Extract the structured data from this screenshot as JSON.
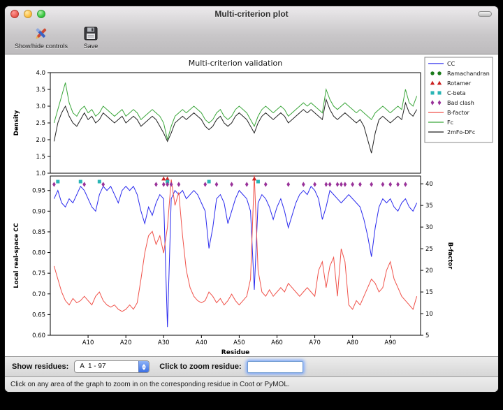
{
  "window": {
    "title": "Multi-criterion plot"
  },
  "toolbar": {
    "show_hide_label": "Show/hide controls",
    "save_label": "Save"
  },
  "controls": {
    "show_residues_label": "Show residues:",
    "residue_range_value": "A  1 - 97",
    "zoom_label": "Click to zoom residue:",
    "zoom_input_value": ""
  },
  "status_bar": "Click on any area of the graph to zoom in on the corresponding residue in Coot or PyMOL.",
  "chart_data": {
    "type": "line",
    "title": "Multi-criterion validation",
    "xlabel": "Residue",
    "residue_start": 1,
    "residue_end": 97,
    "xtick_positions": [
      10,
      20,
      30,
      40,
      50,
      60,
      70,
      80,
      90
    ],
    "xtick_labels": [
      "A10",
      "A20",
      "A30",
      "A40",
      "A50",
      "A60",
      "A70",
      "A80",
      "A90"
    ],
    "legend": [
      {
        "label": "CC",
        "symbol": "line",
        "color": "#2a2aee"
      },
      {
        "label": "Ramachandran",
        "symbol": "circle",
        "color": "#1a7a1a"
      },
      {
        "label": "Rotamer",
        "symbol": "triangle",
        "color": "#cc2222"
      },
      {
        "label": "C-beta",
        "symbol": "square",
        "color": "#2ab5b5"
      },
      {
        "label": "Bad clash",
        "symbol": "diamond",
        "color": "#993299"
      },
      {
        "label": "B-factor",
        "symbol": "line",
        "color": "#f0524a"
      },
      {
        "label": "Fc",
        "symbol": "line",
        "color": "#3aa63a"
      },
      {
        "label": "2mFo-DFc",
        "symbol": "line",
        "color": "#222222"
      }
    ],
    "top": {
      "ylabel": "Density",
      "ylim": [
        1.0,
        4.0
      ],
      "yticks": [
        1.0,
        1.5,
        2.0,
        2.5,
        3.0,
        3.5,
        4.0
      ],
      "series": [
        {
          "name": "Fc",
          "color": "#3aa63a",
          "values": [
            2.5,
            2.9,
            3.3,
            3.7,
            3.1,
            2.8,
            2.7,
            2.9,
            3.0,
            2.8,
            2.9,
            2.7,
            2.8,
            3.0,
            2.9,
            2.8,
            2.7,
            2.8,
            2.9,
            2.7,
            2.8,
            2.9,
            2.8,
            2.6,
            2.7,
            2.8,
            2.9,
            2.8,
            2.7,
            2.5,
            2.0,
            2.4,
            2.7,
            2.8,
            2.9,
            2.8,
            2.9,
            3.0,
            2.9,
            2.8,
            2.6,
            2.5,
            2.6,
            2.8,
            2.9,
            2.7,
            2.6,
            2.7,
            2.9,
            3.0,
            2.9,
            2.8,
            2.6,
            2.4,
            2.7,
            2.9,
            3.0,
            2.9,
            2.8,
            2.9,
            3.0,
            2.9,
            2.7,
            2.8,
            2.9,
            3.0,
            3.1,
            3.0,
            3.1,
            3.0,
            2.9,
            2.8,
            3.5,
            3.2,
            3.0,
            2.9,
            3.0,
            3.1,
            3.0,
            2.9,
            2.8,
            2.9,
            2.8,
            2.7,
            2.6,
            2.8,
            2.9,
            3.0,
            2.9,
            2.8,
            2.9,
            3.0,
            2.9,
            3.5,
            3.1,
            3.0,
            3.3
          ]
        },
        {
          "name": "2mFo-DFc",
          "color": "#222222",
          "values": [
            1.95,
            2.5,
            2.8,
            3.0,
            2.7,
            2.5,
            2.4,
            2.6,
            2.8,
            2.6,
            2.7,
            2.5,
            2.6,
            2.8,
            2.7,
            2.6,
            2.5,
            2.6,
            2.7,
            2.5,
            2.6,
            2.7,
            2.6,
            2.4,
            2.5,
            2.6,
            2.7,
            2.6,
            2.4,
            2.2,
            1.95,
            2.2,
            2.5,
            2.6,
            2.7,
            2.6,
            2.7,
            2.8,
            2.7,
            2.6,
            2.4,
            2.3,
            2.4,
            2.6,
            2.7,
            2.5,
            2.4,
            2.5,
            2.7,
            2.8,
            2.7,
            2.6,
            2.4,
            2.2,
            2.5,
            2.7,
            2.8,
            2.7,
            2.6,
            2.7,
            2.8,
            2.7,
            2.5,
            2.6,
            2.7,
            2.8,
            2.9,
            2.8,
            2.9,
            2.8,
            2.7,
            2.6,
            3.2,
            2.9,
            2.7,
            2.6,
            2.7,
            2.8,
            2.7,
            2.6,
            2.5,
            2.6,
            2.4,
            2.0,
            1.6,
            2.2,
            2.6,
            2.7,
            2.6,
            2.5,
            2.6,
            2.7,
            2.6,
            3.1,
            2.8,
            2.7,
            2.9
          ]
        }
      ]
    },
    "bottom": {
      "ylabel": "Local real-space CC",
      "ylim": [
        0.6,
        0.985
      ],
      "yticks": [
        0.6,
        0.65,
        0.7,
        0.75,
        0.8,
        0.85,
        0.9,
        0.95
      ],
      "y2label": "B-factor",
      "y2lim": [
        5,
        41.8
      ],
      "y2ticks": [
        5,
        10,
        15,
        20,
        25,
        30,
        35,
        40
      ],
      "series": [
        {
          "name": "CC",
          "axis": "left",
          "color": "#2a2aee",
          "values": [
            0.93,
            0.95,
            0.92,
            0.91,
            0.93,
            0.92,
            0.94,
            0.96,
            0.95,
            0.93,
            0.91,
            0.9,
            0.94,
            0.96,
            0.95,
            0.96,
            0.94,
            0.92,
            0.95,
            0.96,
            0.95,
            0.96,
            0.94,
            0.9,
            0.87,
            0.91,
            0.89,
            0.92,
            0.94,
            0.93,
            0.62,
            0.93,
            0.95,
            0.94,
            0.95,
            0.93,
            0.94,
            0.95,
            0.94,
            0.92,
            0.9,
            0.81,
            0.86,
            0.93,
            0.94,
            0.92,
            0.87,
            0.9,
            0.93,
            0.95,
            0.94,
            0.93,
            0.9,
            0.71,
            0.92,
            0.94,
            0.93,
            0.91,
            0.88,
            0.91,
            0.93,
            0.9,
            0.86,
            0.89,
            0.92,
            0.94,
            0.95,
            0.94,
            0.96,
            0.95,
            0.93,
            0.88,
            0.91,
            0.95,
            0.94,
            0.93,
            0.92,
            0.93,
            0.94,
            0.93,
            0.92,
            0.91,
            0.88,
            0.84,
            0.79,
            0.86,
            0.91,
            0.93,
            0.92,
            0.93,
            0.91,
            0.9,
            0.92,
            0.93,
            0.91,
            0.9,
            0.92
          ]
        },
        {
          "name": "B-factor",
          "axis": "right",
          "color": "#f0524a",
          "values": [
            21,
            18,
            15,
            13,
            12,
            13.5,
            12.5,
            13,
            14,
            13,
            12,
            14,
            15,
            13,
            12,
            11.5,
            12,
            11,
            10.5,
            11,
            12,
            11,
            12.5,
            18,
            24,
            28,
            29,
            26,
            28,
            24,
            30,
            41,
            35,
            38,
            28,
            20,
            16,
            14,
            13,
            12.5,
            13,
            15,
            14,
            12.5,
            13.5,
            12,
            13,
            14.5,
            13,
            12,
            13,
            14,
            18,
            42,
            20,
            15,
            14,
            15.5,
            14,
            15,
            16,
            15,
            17,
            16,
            15,
            14,
            15,
            16,
            15,
            14,
            20,
            22,
            16,
            21,
            23,
            14,
            25,
            22,
            12,
            11,
            13,
            12,
            14,
            16,
            18,
            17,
            15,
            16,
            20,
            22,
            18,
            16,
            14,
            13,
            12,
            11,
            14
          ]
        }
      ],
      "markers": {
        "ramachandran": {
          "color": "#1a7a1a",
          "shape": "circle",
          "residues": []
        },
        "rotamer": {
          "color": "#cc2222",
          "shape": "triangle",
          "residues": [
            30,
            31,
            54
          ]
        },
        "cbeta": {
          "color": "#2ab5b5",
          "shape": "square",
          "residues": [
            2,
            8,
            13,
            31,
            42,
            55
          ]
        },
        "bad_clash": {
          "color": "#993299",
          "shape": "diamond",
          "residues": [
            1,
            9,
            14,
            28,
            30,
            31,
            32,
            34,
            41,
            44,
            48,
            52,
            57,
            63,
            67,
            70,
            73,
            74,
            76,
            77,
            78,
            80,
            82,
            85,
            88,
            90,
            92,
            94
          ]
        }
      }
    }
  }
}
